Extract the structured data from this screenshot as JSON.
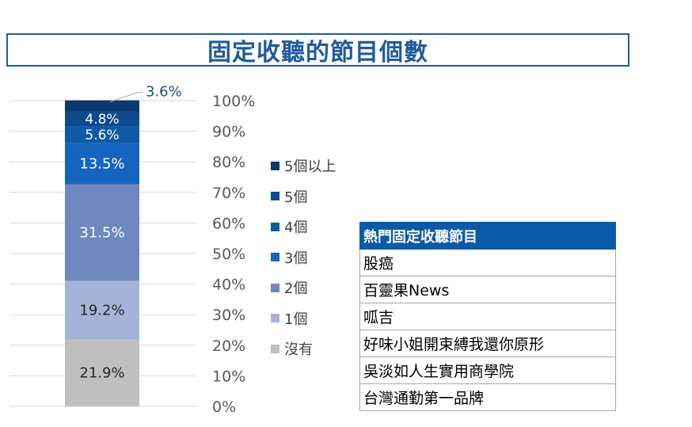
{
  "chart_data": {
    "type": "bar",
    "stacked": true,
    "title": "固定收聽的節目個數",
    "y_ticks": [
      "0%",
      "10%",
      "20%",
      "30%",
      "40%",
      "50%",
      "60%",
      "70%",
      "80%",
      "90%",
      "100%"
    ],
    "ylim": [
      0,
      100
    ],
    "grid": true,
    "legend_position": "right",
    "series": [
      {
        "name": "沒有",
        "value": 21.9,
        "label": "21.9%",
        "color": "#bfbfbf",
        "label_color": "#262626"
      },
      {
        "name": "1個",
        "value": 19.2,
        "label": "19.2%",
        "color": "#a3b4d8",
        "label_color": "#262626"
      },
      {
        "name": "2個",
        "value": 31.5,
        "label": "31.5%",
        "color": "#6f89c0",
        "label_color": "#ffffff"
      },
      {
        "name": "3個",
        "value": 13.5,
        "label": "13.5%",
        "color": "#1565c0",
        "label_color": "#ffffff"
      },
      {
        "name": "4個",
        "value": 5.6,
        "label": "5.6%",
        "color": "#0f5aa6",
        "label_color": "#ffffff"
      },
      {
        "name": "5個",
        "value": 4.8,
        "label": "4.8%",
        "color": "#0e4a8c",
        "label_color": "#ffffff"
      },
      {
        "name": "5個以上",
        "value": 3.6,
        "label": "3.6%",
        "color": "#0b3a70",
        "label_color": "#1f4e79"
      }
    ],
    "legend_order": [
      "5個以上",
      "5個",
      "4個",
      "3個",
      "2個",
      "1個",
      "沒有"
    ]
  },
  "table": {
    "header": "熱門固定收聽節目",
    "rows": [
      "股癌",
      "百靈果News",
      "呱吉",
      "好味小姐開束縛我還你原形",
      "吳淡如人生實用商學院",
      "台灣通勤第一品牌"
    ]
  }
}
